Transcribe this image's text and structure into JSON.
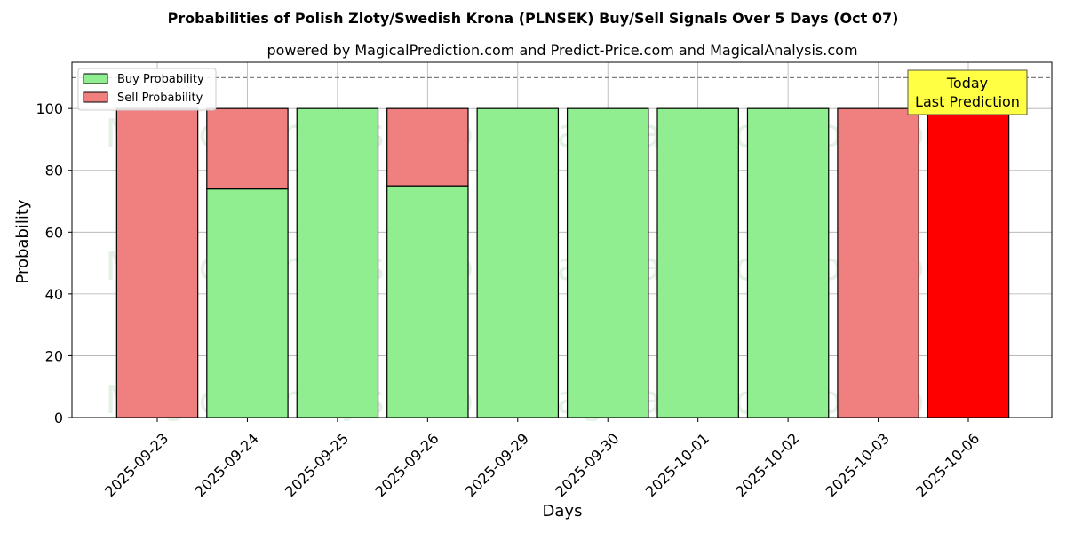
{
  "chart_data": {
    "type": "bar",
    "stacked": true,
    "title": "Probabilities of Polish Zloty/Swedish Krona (PLNSEK) Buy/Sell Signals Over 5 Days (Oct 07)",
    "subtitle": "powered by MagicalPrediction.com and Predict-Price.com and MagicalAnalysis.com",
    "xlabel": "Days",
    "ylabel": "Probability",
    "ylim": [
      0,
      115
    ],
    "yticks": [
      0,
      20,
      40,
      60,
      80,
      100
    ],
    "grid": true,
    "legend_position": "top-left",
    "categories": [
      "2025-09-23",
      "2025-09-24",
      "2025-09-25",
      "2025-09-26",
      "2025-09-29",
      "2025-09-30",
      "2025-10-01",
      "2025-10-02",
      "2025-10-03",
      "2025-10-06"
    ],
    "series": [
      {
        "name": "Buy Probability",
        "color": "#90ee90",
        "values": [
          0,
          74,
          100,
          75,
          100,
          100,
          100,
          100,
          0,
          0
        ]
      },
      {
        "name": "Sell Probability",
        "color": "#f08080",
        "values": [
          100,
          26,
          0,
          25,
          0,
          0,
          0,
          0,
          100,
          100
        ]
      }
    ],
    "highlight": {
      "index": 9,
      "color": "#ff0000"
    },
    "reference_line": {
      "y": 110,
      "style": "dashed",
      "color": "#808080"
    },
    "annotation": {
      "lines": [
        "Today",
        "Last Prediction"
      ],
      "background": "#ffff44"
    },
    "watermarks": [
      "MagicalAnalysis.com",
      "MagicalPrediction.com"
    ]
  }
}
